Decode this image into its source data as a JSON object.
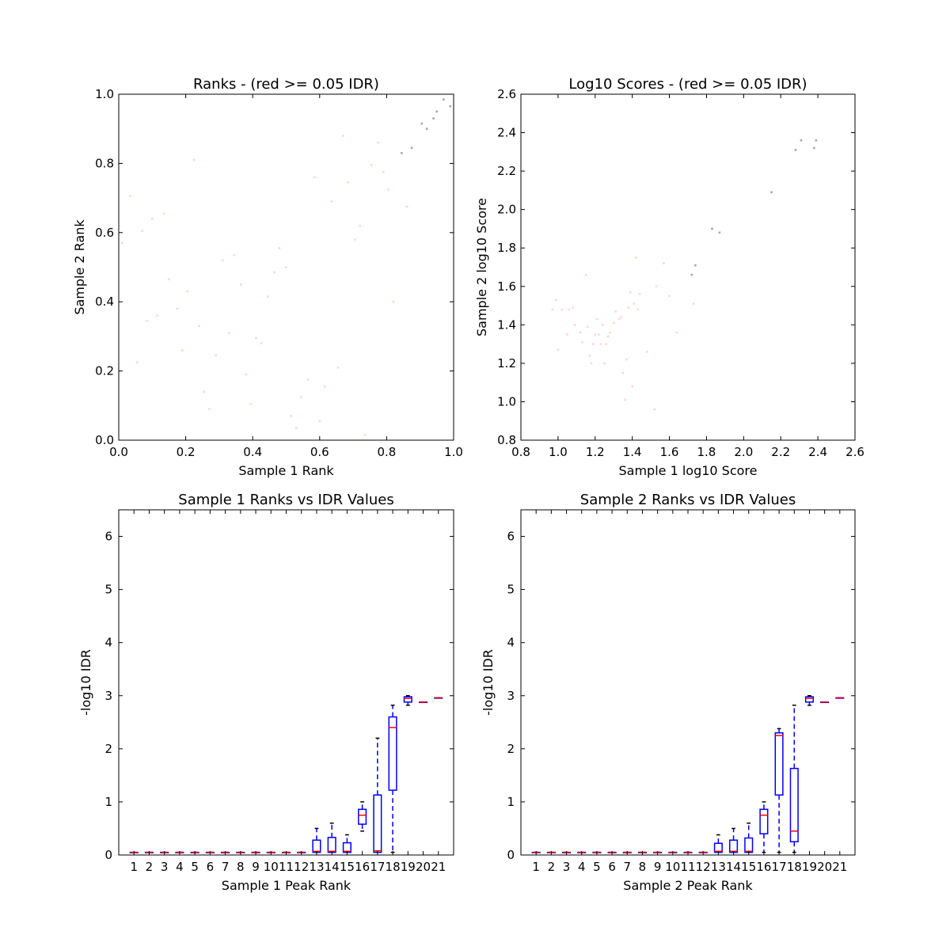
{
  "chart_data": [
    {
      "type": "scatter",
      "title": "Ranks - (red >= 0.05 IDR)",
      "xlabel": "Sample 1 Rank",
      "ylabel": "Sample 2 Rank",
      "xlim": [
        0.0,
        1.0
      ],
      "ylim": [
        0.0,
        1.0
      ],
      "xticks": [
        "0.0",
        "0.2",
        "0.4",
        "0.6",
        "0.8",
        "1.0"
      ],
      "yticks": [
        "0.0",
        "0.2",
        "0.4",
        "0.6",
        "0.8",
        "1.0"
      ],
      "colors": {
        "pass": "#a8a8a8",
        "fail": "#ffd6d6"
      },
      "series": [
        {
          "group": "pass",
          "points": [
            [
              0.97,
              0.985
            ],
            [
              0.99,
              0.965
            ],
            [
              0.95,
              0.95
            ],
            [
              0.94,
              0.93
            ],
            [
              0.905,
              0.915
            ],
            [
              0.92,
              0.9
            ],
            [
              0.875,
              0.845
            ],
            [
              0.845,
              0.83
            ]
          ]
        },
        {
          "group": "fail",
          "points": [
            [
              0.01,
              0.57
            ],
            [
              0.035,
              0.705
            ],
            [
              0.055,
              0.225
            ],
            [
              0.07,
              0.605
            ],
            [
              0.085,
              0.345
            ],
            [
              0.1,
              0.64
            ],
            [
              0.115,
              0.36
            ],
            [
              0.135,
              0.655
            ],
            [
              0.15,
              0.465
            ],
            [
              0.175,
              0.38
            ],
            [
              0.19,
              0.26
            ],
            [
              0.205,
              0.43
            ],
            [
              0.225,
              0.81
            ],
            [
              0.24,
              0.33
            ],
            [
              0.255,
              0.14
            ],
            [
              0.27,
              0.09
            ],
            [
              0.29,
              0.245
            ],
            [
              0.31,
              0.52
            ],
            [
              0.33,
              0.31
            ],
            [
              0.345,
              0.535
            ],
            [
              0.365,
              0.45
            ],
            [
              0.38,
              0.19
            ],
            [
              0.395,
              0.105
            ],
            [
              0.41,
              0.295
            ],
            [
              0.425,
              0.28
            ],
            [
              0.445,
              0.415
            ],
            [
              0.465,
              0.485
            ],
            [
              0.48,
              0.555
            ],
            [
              0.5,
              0.5
            ],
            [
              0.515,
              0.07
            ],
            [
              0.53,
              0.035
            ],
            [
              0.545,
              0.125
            ],
            [
              0.565,
              0.175
            ],
            [
              0.585,
              0.76
            ],
            [
              0.6,
              0.055
            ],
            [
              0.615,
              0.155
            ],
            [
              0.635,
              0.69
            ],
            [
              0.655,
              0.21
            ],
            [
              0.67,
              0.88
            ],
            [
              0.685,
              0.745
            ],
            [
              0.705,
              0.58
            ],
            [
              0.72,
              0.62
            ],
            [
              0.735,
              0.015
            ],
            [
              0.755,
              0.795
            ],
            [
              0.775,
              0.86
            ],
            [
              0.79,
              0.775
            ],
            [
              0.805,
              0.725
            ],
            [
              0.82,
              0.4
            ],
            [
              0.86,
              0.675
            ]
          ]
        }
      ]
    },
    {
      "type": "scatter",
      "title": "Log10 Scores - (red >= 0.05 IDR)",
      "xlabel": "Sample 1 log10 Score",
      "ylabel": "Sample 2 log10 Score",
      "xlim": [
        0.8,
        2.6
      ],
      "ylim": [
        0.8,
        2.6
      ],
      "xticks": [
        "0.8",
        "1.0",
        "1.2",
        "1.4",
        "1.6",
        "1.8",
        "2.0",
        "2.2",
        "2.4",
        "2.6"
      ],
      "yticks": [
        "0.8",
        "1.0",
        "1.2",
        "1.4",
        "1.6",
        "1.8",
        "2.0",
        "2.2",
        "2.4",
        "2.6"
      ],
      "colors": {
        "pass": "#a8a8a8",
        "fail": "#ffd6d6"
      },
      "series": [
        {
          "group": "pass",
          "points": [
            [
              2.39,
              2.36
            ],
            [
              2.38,
              2.32
            ],
            [
              2.31,
              2.36
            ],
            [
              2.28,
              2.31
            ],
            [
              2.15,
              2.09
            ],
            [
              1.83,
              1.9
            ],
            [
              1.87,
              1.88
            ],
            [
              1.74,
              1.71
            ],
            [
              1.72,
              1.66
            ]
          ]
        },
        {
          "group": "fail",
          "points": [
            [
              0.97,
              1.48
            ],
            [
              0.99,
              1.53
            ],
            [
              1.0,
              1.27
            ],
            [
              1.02,
              1.48
            ],
            [
              1.05,
              1.35
            ],
            [
              1.06,
              1.48
            ],
            [
              1.08,
              1.49
            ],
            [
              1.09,
              1.4
            ],
            [
              1.12,
              1.36
            ],
            [
              1.13,
              1.31
            ],
            [
              1.15,
              1.66
            ],
            [
              1.16,
              1.39
            ],
            [
              1.17,
              1.24
            ],
            [
              1.18,
              1.2
            ],
            [
              1.19,
              1.3
            ],
            [
              1.2,
              1.35
            ],
            [
              1.21,
              1.43
            ],
            [
              1.22,
              1.35
            ],
            [
              1.23,
              1.3
            ],
            [
              1.24,
              1.4
            ],
            [
              1.25,
              1.2
            ],
            [
              1.26,
              1.3
            ],
            [
              1.27,
              1.34
            ],
            [
              1.28,
              1.36
            ],
            [
              1.3,
              1.41
            ],
            [
              1.31,
              1.47
            ],
            [
              1.33,
              1.43
            ],
            [
              1.34,
              1.44
            ],
            [
              1.35,
              1.15
            ],
            [
              1.36,
              1.01
            ],
            [
              1.37,
              1.22
            ],
            [
              1.38,
              1.49
            ],
            [
              1.39,
              1.57
            ],
            [
              1.4,
              1.08
            ],
            [
              1.41,
              1.51
            ],
            [
              1.42,
              1.75
            ],
            [
              1.43,
              1.48
            ],
            [
              1.44,
              1.56
            ],
            [
              1.48,
              1.26
            ],
            [
              1.52,
              0.96
            ],
            [
              1.53,
              1.6
            ],
            [
              1.57,
              1.72
            ],
            [
              1.6,
              1.55
            ],
            [
              1.64,
              1.36
            ],
            [
              1.73,
              1.51
            ]
          ]
        }
      ]
    },
    {
      "type": "boxplot",
      "title": "Sample 1 Ranks vs IDR Values",
      "xlabel": "Sample 1 Peak Rank",
      "ylabel": "-log10 IDR",
      "ylim": [
        0,
        6.5
      ],
      "yticks": [
        "0",
        "1",
        "2",
        "3",
        "4",
        "5",
        "6"
      ],
      "categories": [
        "1",
        "2",
        "3",
        "4",
        "5",
        "6",
        "7",
        "8",
        "9",
        "10",
        "11",
        "12",
        "13",
        "14",
        "15",
        "16",
        "17",
        "18",
        "19",
        "20",
        "21"
      ],
      "colors": {
        "box": "#0000ff",
        "median": "#ff0000",
        "flier": "#ffd6d6"
      },
      "boxes": [
        {
          "whislo": 0.05,
          "q1": 0.05,
          "med": 0.05,
          "q3": 0.05,
          "whishi": 0.05
        },
        {
          "whislo": 0.05,
          "q1": 0.05,
          "med": 0.05,
          "q3": 0.05,
          "whishi": 0.05
        },
        {
          "whislo": 0.05,
          "q1": 0.05,
          "med": 0.05,
          "q3": 0.05,
          "whishi": 0.05
        },
        {
          "whislo": 0.05,
          "q1": 0.05,
          "med": 0.05,
          "q3": 0.05,
          "whishi": 0.05
        },
        {
          "whislo": 0.05,
          "q1": 0.05,
          "med": 0.05,
          "q3": 0.05,
          "whishi": 0.05
        },
        {
          "whislo": 0.05,
          "q1": 0.05,
          "med": 0.05,
          "q3": 0.05,
          "whishi": 0.05
        },
        {
          "whislo": 0.05,
          "q1": 0.05,
          "med": 0.05,
          "q3": 0.05,
          "whishi": 0.05
        },
        {
          "whislo": 0.05,
          "q1": 0.05,
          "med": 0.05,
          "q3": 0.05,
          "whishi": 0.05
        },
        {
          "whislo": 0.05,
          "q1": 0.05,
          "med": 0.05,
          "q3": 0.05,
          "whishi": 0.05
        },
        {
          "whislo": 0.05,
          "q1": 0.05,
          "med": 0.05,
          "q3": 0.05,
          "whishi": 0.05
        },
        {
          "whislo": 0.05,
          "q1": 0.05,
          "med": 0.05,
          "q3": 0.05,
          "whishi": 0.05
        },
        {
          "whislo": 0.05,
          "q1": 0.05,
          "med": 0.05,
          "q3": 0.05,
          "whishi": 0.05
        },
        {
          "whislo": 0.05,
          "q1": 0.05,
          "med": 0.07,
          "q3": 0.28,
          "whishi": 0.5
        },
        {
          "whislo": 0.05,
          "q1": 0.05,
          "med": 0.07,
          "q3": 0.33,
          "whishi": 0.6
        },
        {
          "whislo": 0.05,
          "q1": 0.05,
          "med": 0.07,
          "q3": 0.23,
          "whishi": 0.38
        },
        {
          "whislo": 0.45,
          "q1": 0.58,
          "med": 0.75,
          "q3": 0.86,
          "whishi": 1.0
        },
        {
          "whislo": 0.05,
          "q1": 0.05,
          "med": 0.08,
          "q3": 1.13,
          "whishi": 2.2
        },
        {
          "whislo": 0.05,
          "q1": 1.22,
          "med": 2.4,
          "q3": 2.6,
          "whishi": 2.82
        },
        {
          "whislo": 2.82,
          "q1": 2.88,
          "med": 2.95,
          "q3": 2.98,
          "whishi": 3.0
        },
        {
          "whislo": 2.88,
          "q1": 2.88,
          "med": 2.88,
          "q3": 2.88,
          "whishi": 2.88
        },
        {
          "whislo": 2.96,
          "q1": 2.96,
          "med": 2.96,
          "q3": 2.96,
          "whishi": 2.96
        }
      ]
    },
    {
      "type": "boxplot",
      "title": "Sample 2 Ranks vs IDR Values",
      "xlabel": "Sample 2 Peak Rank",
      "ylabel": "-log10 IDR",
      "ylim": [
        0,
        6.5
      ],
      "yticks": [
        "0",
        "1",
        "2",
        "3",
        "4",
        "5",
        "6"
      ],
      "categories": [
        "1",
        "2",
        "3",
        "4",
        "5",
        "6",
        "7",
        "8",
        "9",
        "10",
        "11",
        "12",
        "13",
        "14",
        "15",
        "16",
        "17",
        "18",
        "19",
        "20",
        "21"
      ],
      "colors": {
        "box": "#0000ff",
        "median": "#ff0000",
        "flier": "#ffd6d6"
      },
      "boxes": [
        {
          "whislo": 0.05,
          "q1": 0.05,
          "med": 0.05,
          "q3": 0.05,
          "whishi": 0.05
        },
        {
          "whislo": 0.05,
          "q1": 0.05,
          "med": 0.05,
          "q3": 0.05,
          "whishi": 0.05
        },
        {
          "whislo": 0.05,
          "q1": 0.05,
          "med": 0.05,
          "q3": 0.05,
          "whishi": 0.05
        },
        {
          "whislo": 0.05,
          "q1": 0.05,
          "med": 0.05,
          "q3": 0.05,
          "whishi": 0.05
        },
        {
          "whislo": 0.05,
          "q1": 0.05,
          "med": 0.05,
          "q3": 0.05,
          "whishi": 0.05
        },
        {
          "whislo": 0.05,
          "q1": 0.05,
          "med": 0.05,
          "q3": 0.05,
          "whishi": 0.05
        },
        {
          "whislo": 0.05,
          "q1": 0.05,
          "med": 0.05,
          "q3": 0.05,
          "whishi": 0.05
        },
        {
          "whislo": 0.05,
          "q1": 0.05,
          "med": 0.05,
          "q3": 0.05,
          "whishi": 0.05
        },
        {
          "whislo": 0.05,
          "q1": 0.05,
          "med": 0.05,
          "q3": 0.05,
          "whishi": 0.05
        },
        {
          "whislo": 0.05,
          "q1": 0.05,
          "med": 0.05,
          "q3": 0.05,
          "whishi": 0.05
        },
        {
          "whislo": 0.05,
          "q1": 0.05,
          "med": 0.05,
          "q3": 0.05,
          "whishi": 0.05
        },
        {
          "whislo": 0.05,
          "q1": 0.05,
          "med": 0.05,
          "q3": 0.05,
          "whishi": 0.05
        },
        {
          "whislo": 0.05,
          "q1": 0.05,
          "med": 0.07,
          "q3": 0.22,
          "whishi": 0.38
        },
        {
          "whislo": 0.05,
          "q1": 0.05,
          "med": 0.07,
          "q3": 0.28,
          "whishi": 0.5
        },
        {
          "whislo": 0.05,
          "q1": 0.05,
          "med": 0.07,
          "q3": 0.32,
          "whishi": 0.6
        },
        {
          "whislo": 0.05,
          "q1": 0.4,
          "med": 0.75,
          "q3": 0.86,
          "whishi": 1.0
        },
        {
          "whislo": 0.05,
          "q1": 1.13,
          "med": 2.25,
          "q3": 2.3,
          "whishi": 2.38
        },
        {
          "whislo": 0.05,
          "q1": 0.25,
          "med": 0.45,
          "q3": 1.63,
          "whishi": 2.82
        },
        {
          "whislo": 2.82,
          "q1": 2.88,
          "med": 2.95,
          "q3": 2.98,
          "whishi": 3.0
        },
        {
          "whislo": 2.88,
          "q1": 2.88,
          "med": 2.88,
          "q3": 2.88,
          "whishi": 2.88
        },
        {
          "whislo": 2.96,
          "q1": 2.96,
          "med": 2.96,
          "q3": 2.96,
          "whishi": 2.96
        }
      ]
    }
  ]
}
